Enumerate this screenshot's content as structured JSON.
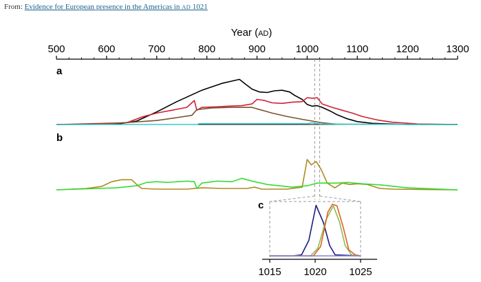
{
  "source": {
    "prefix": "From: ",
    "link_text_before": "Evidence for European presence in the Americas in ",
    "link_era": "AD",
    "link_text_after": " 1021"
  },
  "chart_data": [
    {
      "id": "main-axis",
      "type": "axis",
      "xlabel": "Year",
      "xlabel_unit": "AD",
      "xlim": [
        500,
        1300
      ],
      "ticks": [
        500,
        600,
        700,
        800,
        900,
        1000,
        1100,
        1200,
        1300
      ],
      "highlight_band": [
        1015,
        1025
      ]
    },
    {
      "id": "panel-a",
      "type": "line",
      "panel_label": "a",
      "xlim": [
        500,
        1300
      ],
      "ylim": [
        0,
        1
      ],
      "series": [
        {
          "color": "#000000",
          "points": [
            [
              500,
              0
            ],
            [
              620,
              0.005
            ],
            [
              660,
              0.06
            ],
            [
              700,
              0.22
            ],
            [
              740,
              0.4
            ],
            [
              770,
              0.52
            ],
            [
              790,
              0.6
            ],
            [
              810,
              0.66
            ],
            [
              830,
              0.72
            ],
            [
              850,
              0.76
            ],
            [
              865,
              0.79
            ],
            [
              875,
              0.72
            ],
            [
              890,
              0.62
            ],
            [
              905,
              0.57
            ],
            [
              920,
              0.56
            ],
            [
              935,
              0.59
            ],
            [
              950,
              0.6
            ],
            [
              965,
              0.57
            ],
            [
              975,
              0.51
            ],
            [
              990,
              0.44
            ],
            [
              1000,
              0.35
            ],
            [
              1010,
              0.32
            ],
            [
              1020,
              0.33
            ],
            [
              1030,
              0.3
            ],
            [
              1045,
              0.24
            ],
            [
              1060,
              0.17
            ],
            [
              1080,
              0.1
            ],
            [
              1100,
              0.05
            ],
            [
              1130,
              0.02
            ],
            [
              1200,
              0
            ],
            [
              1300,
              0
            ]
          ]
        },
        {
          "color": "#cc2233",
          "points": [
            [
              500,
              0
            ],
            [
              640,
              0.03
            ],
            [
              670,
              0.13
            ],
            [
              700,
              0.2
            ],
            [
              730,
              0.25
            ],
            [
              760,
              0.3
            ],
            [
              775,
              0.42
            ],
            [
              780,
              0.25
            ],
            [
              790,
              0.3
            ],
            [
              820,
              0.31
            ],
            [
              840,
              0.32
            ],
            [
              870,
              0.33
            ],
            [
              890,
              0.36
            ],
            [
              900,
              0.44
            ],
            [
              915,
              0.42
            ],
            [
              930,
              0.38
            ],
            [
              950,
              0.37
            ],
            [
              970,
              0.39
            ],
            [
              990,
              0.4
            ],
            [
              1000,
              0.47
            ],
            [
              1010,
              0.46
            ],
            [
              1020,
              0.47
            ],
            [
              1030,
              0.36
            ],
            [
              1050,
              0.3
            ],
            [
              1070,
              0.25
            ],
            [
              1090,
              0.2
            ],
            [
              1110,
              0.14
            ],
            [
              1140,
              0.08
            ],
            [
              1170,
              0.04
            ],
            [
              1220,
              0.01
            ],
            [
              1300,
              0
            ]
          ]
        },
        {
          "color": "#7a5030",
          "points": [
            [
              500,
              0
            ],
            [
              600,
              0.01
            ],
            [
              700,
              0.07
            ],
            [
              740,
              0.12
            ],
            [
              770,
              0.16
            ],
            [
              780,
              0.26
            ],
            [
              790,
              0.27
            ],
            [
              810,
              0.29
            ],
            [
              850,
              0.3
            ],
            [
              890,
              0.3
            ],
            [
              910,
              0.25
            ],
            [
              930,
              0.2
            ],
            [
              960,
              0.14
            ],
            [
              990,
              0.09
            ],
            [
              1010,
              0.06
            ],
            [
              1030,
              0.03
            ],
            [
              1060,
              0.005
            ],
            [
              1300,
              0
            ]
          ]
        },
        {
          "color": "#33cccc",
          "points": [
            [
              500,
              0
            ],
            [
              780,
              0
            ],
            [
              785,
              0.015
            ],
            [
              1000,
              0.015
            ],
            [
              1010,
              0.03
            ],
            [
              1025,
              0.01
            ],
            [
              1080,
              0.005
            ],
            [
              1300,
              0
            ]
          ]
        }
      ]
    },
    {
      "id": "panel-b",
      "type": "line",
      "panel_label": "b",
      "xlim": [
        500,
        1300
      ],
      "ylim": [
        0,
        1
      ],
      "series": [
        {
          "color": "#b08820",
          "points": [
            [
              500,
              0
            ],
            [
              560,
              0.02
            ],
            [
              590,
              0.05
            ],
            [
              610,
              0.12
            ],
            [
              630,
              0.15
            ],
            [
              650,
              0.15
            ],
            [
              660,
              0.08
            ],
            [
              670,
              0.02
            ],
            [
              700,
              0.01
            ],
            [
              760,
              0.01
            ],
            [
              790,
              0.03
            ],
            [
              830,
              0.02
            ],
            [
              880,
              0.02
            ],
            [
              895,
              0.04
            ],
            [
              910,
              0.01
            ],
            [
              960,
              0.01
            ],
            [
              990,
              0.04
            ],
            [
              1000,
              0.45
            ],
            [
              1008,
              0.37
            ],
            [
              1018,
              0.42
            ],
            [
              1028,
              0.3
            ],
            [
              1040,
              0.1
            ],
            [
              1055,
              0.03
            ],
            [
              1070,
              0.1
            ],
            [
              1085,
              0.08
            ],
            [
              1100,
              0.09
            ],
            [
              1120,
              0.08
            ],
            [
              1145,
              0.02
            ],
            [
              1170,
              0.01
            ],
            [
              1300,
              0
            ]
          ]
        },
        {
          "color": "#33dd33",
          "points": [
            [
              500,
              0
            ],
            [
              620,
              0.03
            ],
            [
              660,
              0.06
            ],
            [
              680,
              0.11
            ],
            [
              700,
              0.12
            ],
            [
              720,
              0.11
            ],
            [
              760,
              0.13
            ],
            [
              775,
              0.12
            ],
            [
              780,
              0.02
            ],
            [
              790,
              0.1
            ],
            [
              820,
              0.13
            ],
            [
              850,
              0.12
            ],
            [
              870,
              0.17
            ],
            [
              890,
              0.13
            ],
            [
              920,
              0.08
            ],
            [
              970,
              0.04
            ],
            [
              1000,
              0.06
            ],
            [
              1020,
              0.1
            ],
            [
              1060,
              0.1
            ],
            [
              1080,
              0.11
            ],
            [
              1110,
              0.09
            ],
            [
              1150,
              0.07
            ],
            [
              1200,
              0.03
            ],
            [
              1300,
              0
            ]
          ]
        }
      ]
    },
    {
      "id": "panel-c",
      "type": "line",
      "panel_label": "c",
      "xlim": [
        1015,
        1025
      ],
      "ylim": [
        0,
        1
      ],
      "ticks": [
        1015,
        1020,
        1025
      ],
      "series": [
        {
          "color": "#1a1a80",
          "points": [
            [
              1015,
              0
            ],
            [
              1017.5,
              0
            ],
            [
              1018.5,
              0.02
            ],
            [
              1019.3,
              0.3
            ],
            [
              1020.1,
              0.98
            ],
            [
              1020.9,
              0.65
            ],
            [
              1021.6,
              0.2
            ],
            [
              1022.2,
              0.02
            ],
            [
              1025,
              0
            ]
          ]
        },
        {
          "color": "#8dbb55",
          "points": [
            [
              1015,
              0
            ],
            [
              1019.5,
              0
            ],
            [
              1020.3,
              0.15
            ],
            [
              1021.2,
              0.7
            ],
            [
              1022.0,
              0.97
            ],
            [
              1022.7,
              0.65
            ],
            [
              1023.3,
              0.2
            ],
            [
              1024.0,
              0.02
            ],
            [
              1025,
              0
            ]
          ]
        },
        {
          "color": "#e06020",
          "points": [
            [
              1015,
              0
            ],
            [
              1019.8,
              0
            ],
            [
              1020.6,
              0.18
            ],
            [
              1021.4,
              0.85
            ],
            [
              1021.9,
              1.0
            ],
            [
              1022.4,
              0.97
            ],
            [
              1023.1,
              0.55
            ],
            [
              1023.7,
              0.12
            ],
            [
              1024.4,
              0.02
            ],
            [
              1025,
              0
            ]
          ]
        },
        {
          "color": "#8080e0",
          "points": [
            [
              1015,
              0
            ],
            [
              1025,
              0
            ]
          ]
        }
      ]
    }
  ]
}
